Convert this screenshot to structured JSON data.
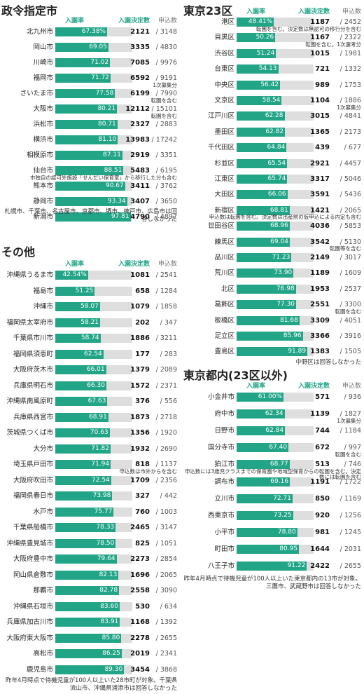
{
  "chart_data": [
    {
      "type": "bar",
      "title": "政令指定市",
      "xlim": [
        0,
        100
      ],
      "categories": [
        "北九州市",
        "岡山市",
        "川崎市",
        "福岡市",
        "さいたま市",
        "大阪市",
        "浜松市",
        "横浜市",
        "相模原市",
        "仙台市",
        "熊本市",
        "静岡市",
        "新潟市"
      ],
      "series": [
        {
          "name": "入園率",
          "color": "#22a587",
          "values": [
            67.38,
            69.05,
            71.02,
            71.72,
            77.58,
            80.21,
            80.71,
            81.1,
            87.11,
            88.51,
            90.67,
            93.34,
            97.81
          ],
          "value_labels": [
            "67.38%",
            "69.05",
            "71.02",
            "71.72",
            "77.58",
            "80.21",
            "80.71",
            "81.10",
            "87.11",
            "88.51",
            "90.67",
            "93.34",
            "97.81"
          ]
        },
        {
          "name": "入園決定数",
          "color": "#22a587",
          "values": [
            2121,
            3335,
            7085,
            6592,
            6199,
            12112,
            2327,
            13983,
            2919,
            5483,
            3411,
            3407,
            4790
          ]
        },
        {
          "name": "申込数",
          "color": "#777777",
          "values": [
            3148,
            4830,
            9976,
            9191,
            7990,
            15101,
            2883,
            17242,
            3351,
            6195,
            3762,
            3650,
            4897
          ]
        }
      ],
      "notes": [
        null,
        null,
        null,
        "1次募集分",
        "転園を含む",
        "転園を含む",
        null,
        null,
        null,
        "市独自の認可外施設「せんだい保育室」から移行した分も含む",
        null,
        null,
        null
      ],
      "footnote": "札幌市、千葉市、名古屋市、京都市、堺市、神戸市、広島市は回答しなかった"
    },
    {
      "type": "bar",
      "title": "その他",
      "xlim": [
        0,
        100
      ],
      "categories": [
        "沖縄県うるま市",
        "福島市",
        "沖縄市",
        "福岡県太宰府市",
        "千葉県市川市",
        "福岡県須恵町",
        "大阪府茨木市",
        "兵庫県明石市",
        "沖縄県南風原町",
        "兵庫県西宮市",
        "茨城県つくば市",
        "大分市",
        "埼玉県戸田市",
        "大阪府吹田市",
        "福岡県春日市",
        "水戸市",
        "千葉県船橋市",
        "沖縄県豊見城市",
        "大阪府豊中市",
        "岡山県倉敷市",
        "那覇市",
        "沖縄県石垣市",
        "兵庫県加古川市",
        "大阪府東大阪市",
        "高松市",
        "鹿児島市"
      ],
      "series": [
        {
          "name": "入園率",
          "color": "#22a587",
          "values": [
            42.54,
            51.25,
            58.07,
            58.21,
            58.74,
            62.54,
            66.01,
            66.3,
            67.63,
            68.91,
            70.63,
            71.82,
            71.94,
            72.54,
            73.98,
            75.77,
            78.33,
            78.5,
            79.64,
            82.13,
            82.78,
            83.6,
            83.91,
            85.8,
            86.25,
            89.3
          ],
          "value_labels": [
            "42.54%",
            "51.25",
            "58.07",
            "58.21",
            "58.74",
            "62.54",
            "66.01",
            "66.30",
            "67.63",
            "68.91",
            "70.63",
            "71.82",
            "71.94",
            "72.54",
            "73.98",
            "75.77",
            "78.33",
            "78.50",
            "79.64",
            "82.13",
            "82.78",
            "83.60",
            "83.91",
            "85.80",
            "86.25",
            "89.30"
          ]
        },
        {
          "name": "入園決定数",
          "color": "#22a587",
          "values": [
            1081,
            658,
            1079,
            202,
            1886,
            177,
            1379,
            1572,
            376,
            1873,
            1356,
            1932,
            818,
            1709,
            327,
            760,
            2465,
            825,
            2273,
            1696,
            2558,
            530,
            1168,
            2278,
            2019,
            3454
          ]
        },
        {
          "name": "申込数",
          "color": "#777777",
          "values": [
            2541,
            1284,
            1858,
            347,
            3211,
            283,
            2089,
            2371,
            556,
            2718,
            1920,
            2690,
            1137,
            2356,
            442,
            1003,
            3147,
            1051,
            2854,
            2065,
            3090,
            634,
            1392,
            2655,
            2341,
            3868
          ]
        }
      ],
      "notes": [
        null,
        null,
        null,
        null,
        null,
        null,
        null,
        null,
        null,
        null,
        null,
        null,
        "申込数は市外からを含む",
        null,
        null,
        null,
        null,
        null,
        null,
        null,
        null,
        null,
        null,
        null,
        null,
        null
      ],
      "footnote": "昨年4月時点で待機児童が100人以上いた28市町が対象。千葉県流山市、沖縄県浦添市は回答しなかった"
    },
    {
      "type": "bar",
      "title": "東京23区",
      "xlim": [
        0,
        100
      ],
      "categories": [
        "港区",
        "目黒区",
        "渋谷区",
        "台東区",
        "中央区",
        "文京区",
        "江戸川区",
        "墨田区",
        "千代田区",
        "杉並区",
        "江東区",
        "大田区",
        "新宿区",
        "世田谷区",
        "練馬区",
        "品川区",
        "荒川区",
        "北区",
        "葛飾区",
        "板橋区",
        "足立区",
        "豊島区"
      ],
      "series": [
        {
          "name": "入園率",
          "color": "#22a587",
          "values": [
            48.41,
            50.26,
            51.24,
            54.13,
            56.42,
            58.54,
            62.28,
            62.82,
            64.84,
            65.54,
            65.74,
            66.06,
            68.81,
            68.96,
            69.04,
            71.23,
            73.9,
            76.98,
            77.3,
            81.68,
            85.96,
            91.89
          ],
          "value_labels": [
            "48.41%",
            "50.26",
            "51.24",
            "54.13",
            "56.42",
            "58.54",
            "62.28",
            "62.82",
            "64.84",
            "65.54",
            "65.74",
            "66.06",
            "68.81",
            "68.96",
            "69.04",
            "71.23",
            "73.90",
            "76.98",
            "77.30",
            "81.68",
            "85.96",
            "91.89"
          ]
        },
        {
          "name": "入園決定数",
          "color": "#22a587",
          "values": [
            1187,
            1167,
            1015,
            721,
            989,
            1104,
            3015,
            1365,
            439,
            2921,
            3317,
            3591,
            1421,
            4036,
            3542,
            2149,
            1189,
            1953,
            2551,
            3309,
            3366,
            1383
          ]
        },
        {
          "name": "申込数",
          "color": "#777777",
          "values": [
            2452,
            2322,
            1981,
            1332,
            1753,
            1886,
            4841,
            2173,
            677,
            4457,
            5046,
            5436,
            2065,
            5853,
            5130,
            3017,
            1609,
            2537,
            3300,
            4051,
            3916,
            1505
          ]
        }
      ],
      "notes": [
        "転園を含む。決定数は無認可の移行分を含む",
        "転園を含む。1次選考分",
        null,
        null,
        null,
        "1次募集分",
        null,
        null,
        null,
        null,
        null,
        null,
        "申込数は転園を含む。決定数は出産前の仮申込による内定も含む",
        null,
        "転園等を含む",
        null,
        null,
        null,
        "転園を含む",
        null,
        null,
        null
      ],
      "footnote": "中野区は回答しなかった"
    },
    {
      "type": "bar",
      "title": "東京都内(23区以外)",
      "xlim": [
        0,
        100
      ],
      "categories": [
        "小金井市",
        "府中市",
        "日野市",
        "国分寺市",
        "狛江市",
        "調布市",
        "立川市",
        "西東京市",
        "小平市",
        "町田市",
        "八王子市"
      ],
      "series": [
        {
          "name": "入園率",
          "color": "#22a587",
          "values": [
            61.0,
            62.34,
            62.84,
            67.4,
            68.77,
            69.16,
            72.71,
            73.25,
            78.8,
            80.95,
            91.22
          ],
          "value_labels": [
            "61.00%",
            "62.34",
            "62.84",
            "67.40",
            "68.77",
            "69.16",
            "72.71",
            "73.25",
            "78.80",
            "80.95",
            "91.22"
          ]
        },
        {
          "name": "入園決定数",
          "color": "#22a587",
          "values": [
            571,
            1139,
            744,
            672,
            513,
            1191,
            850,
            920,
            981,
            1644,
            2422
          ]
        },
        {
          "name": "申込数",
          "color": "#777777",
          "values": [
            936,
            1827,
            1184,
            997,
            746,
            1722,
            1169,
            1256,
            1245,
            2031,
            2655
          ]
        }
      ],
      "notes": [
        null,
        "1次募集分",
        null,
        "転園を含む",
        "申込数には3歳児クラスまでの保育園や地域型保育からの転園を含む。決定数には転園を含む",
        null,
        null,
        null,
        null,
        null,
        null
      ],
      "footnote": "昨年4月時点で待機児童が100人以上いた東京都内の13市が対象。三鷹市、武蔵野市は回答しなかった"
    }
  ]
}
